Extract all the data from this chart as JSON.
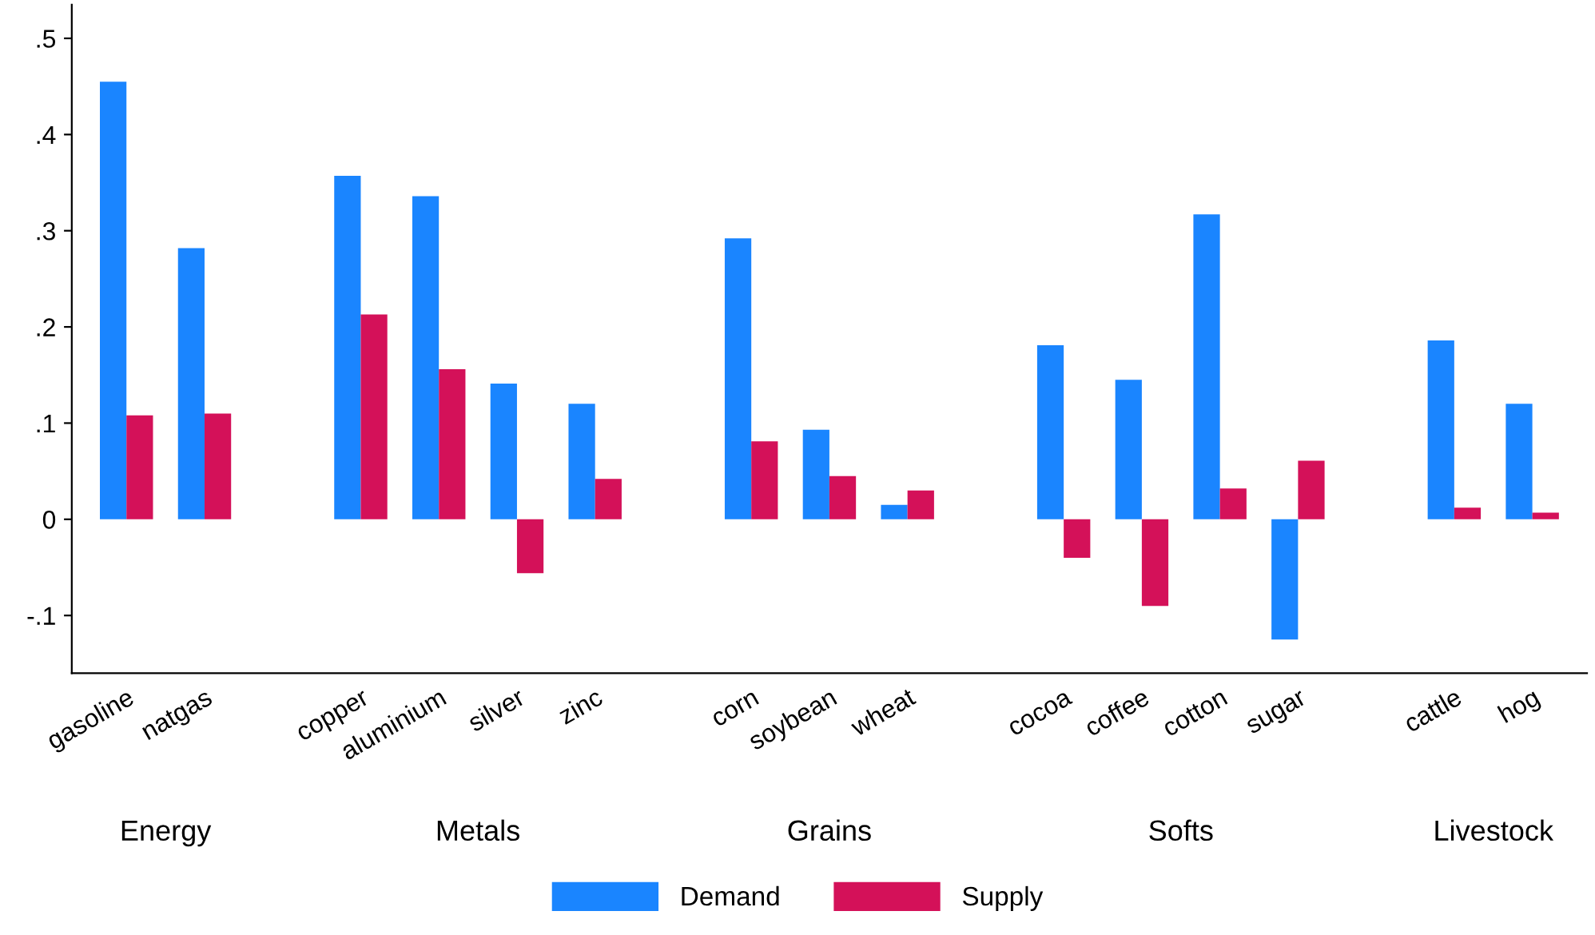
{
  "chart_data": {
    "type": "bar",
    "categories": [
      "gasoline",
      "natgas",
      null,
      "copper",
      "aluminium",
      "silver",
      "zinc",
      null,
      "corn",
      "soybean",
      "wheat",
      null,
      "cocoa",
      "coffee",
      "cotton",
      "sugar",
      null,
      "cattle",
      "hog"
    ],
    "series": [
      {
        "name": "Demand",
        "color": "#1a85ff",
        "values": [
          0.455,
          0.282,
          null,
          0.357,
          0.336,
          0.141,
          0.12,
          null,
          0.292,
          0.093,
          0.015,
          null,
          0.181,
          0.145,
          0.317,
          -0.125,
          null,
          0.186,
          0.12
        ]
      },
      {
        "name": "Supply",
        "color": "#d41159",
        "values": [
          0.108,
          0.11,
          null,
          0.213,
          0.156,
          -0.056,
          0.042,
          null,
          0.081,
          0.045,
          0.03,
          null,
          -0.04,
          -0.09,
          0.032,
          0.061,
          null,
          0.012,
          0.007
        ]
      }
    ],
    "annotations": [
      "Energy",
      "Metals",
      "Grains",
      "Softs",
      "Livestock"
    ],
    "ylim": [
      -0.16,
      0.535
    ],
    "yticks": [
      {
        "value": -0.1,
        "label": "-.1"
      },
      0,
      {
        "value": 0.1,
        "label": ".1"
      },
      {
        "value": 0.2,
        "label": ".2"
      },
      {
        "value": 0.3,
        "label": ".3"
      },
      {
        "value": 0.4,
        "label": ".4"
      },
      {
        "value": 0.5,
        "label": ".5"
      }
    ],
    "grid": false,
    "legend": "bottom"
  }
}
